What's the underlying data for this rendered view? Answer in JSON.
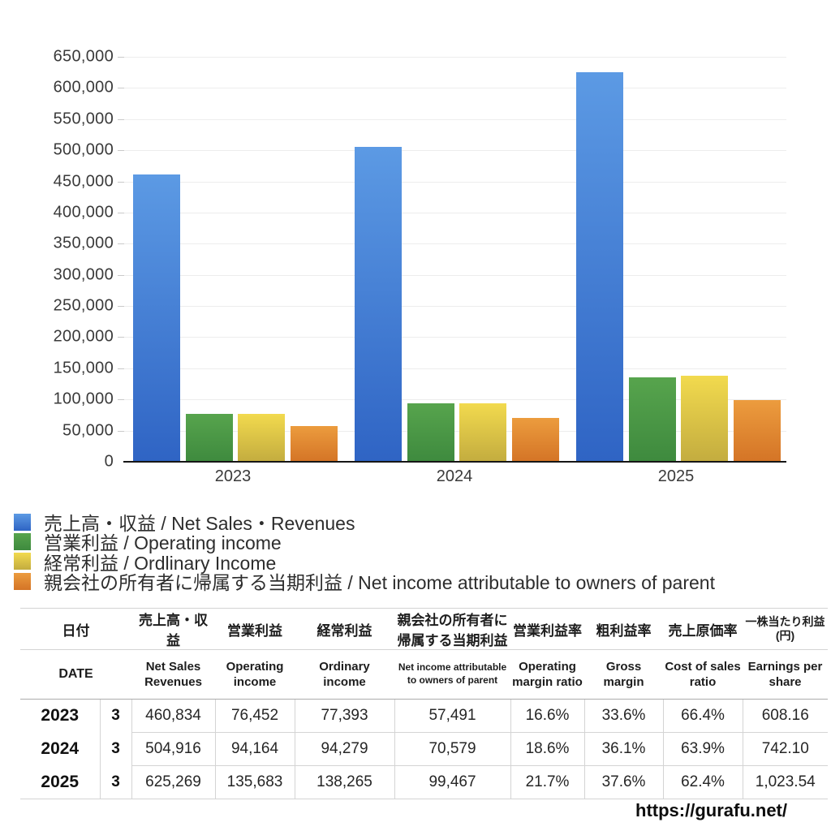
{
  "chart_data": {
    "type": "bar",
    "categories": [
      "2023",
      "2024",
      "2025"
    ],
    "series": [
      {
        "label": "売上高・収益 / Net Sales・Revenues",
        "color_top": "#5C9AE4",
        "color_bottom": "#2F64C4",
        "values": [
          460834,
          504916,
          625269
        ]
      },
      {
        "label": "営業利益 / Operating income",
        "color_top": "#57A44D",
        "color_bottom": "#3E8A3E",
        "values": [
          76452,
          94164,
          135683
        ]
      },
      {
        "label": "経常利益 / Ordlinary Income",
        "color_top": "#F2DA4E",
        "color_bottom": "#C3AC3F",
        "values": [
          77393,
          94279,
          138265
        ]
      },
      {
        "label": "親会社の所有者に帰属する当期利益 / Net income attributable to owners of parent",
        "color_top": "#EC9C3E",
        "color_bottom": "#D47426",
        "values": [
          57491,
          70579,
          99467
        ]
      }
    ],
    "ylim": [
      0,
      650000
    ],
    "ytick_step": 50000,
    "grid": true,
    "legend_position": "bottom-left"
  },
  "table": {
    "header_jp": [
      "日付",
      "売上高・収益",
      "営業利益",
      "経常利益",
      "親会社の所有者に帰属する当期利益",
      "営業利益率",
      "粗利益率",
      "売上原価率",
      "一株当たり利益\n(円)"
    ],
    "header_en": [
      "DATE",
      "Net Sales Revenues",
      "Operating income",
      "Ordinary income",
      "Net income attributable to owners of parent",
      "Operating margin ratio",
      "Gross margin",
      "Cost of sales ratio",
      "Earnings per share"
    ],
    "rows": [
      [
        "2023",
        "3",
        "460,834",
        "76,452",
        "77,393",
        "57,491",
        "16.6%",
        "33.6%",
        "66.4%",
        "608.16"
      ],
      [
        "2024",
        "3",
        "504,916",
        "94,164",
        "94,279",
        "70,579",
        "18.6%",
        "36.1%",
        "63.9%",
        "742.10"
      ],
      [
        "2025",
        "3",
        "625,269",
        "135,683",
        "138,265",
        "99,467",
        "21.7%",
        "37.6%",
        "62.4%",
        "1,023.54"
      ]
    ]
  },
  "footer": {
    "url": "https://gurafu.net/"
  }
}
